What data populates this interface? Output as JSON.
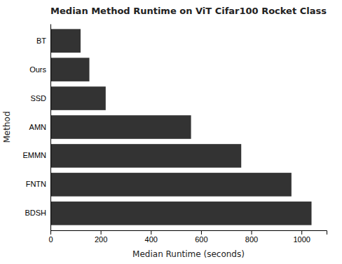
{
  "chart_data": {
    "type": "bar",
    "orientation": "horizontal",
    "title": "Median Method Runtime on ViT Cifar100 Rocket Class",
    "xlabel": "Median Runtime (seconds)",
    "ylabel": "Method",
    "categories": [
      "BDSH",
      "FNTN",
      "EMMN",
      "AMN",
      "SSD",
      "Ours",
      "BT"
    ],
    "values": [
      1040,
      960,
      760,
      560,
      220,
      155,
      120
    ],
    "color": "#333333",
    "xlim": [
      0,
      1100
    ],
    "xticks": [
      0,
      200,
      400,
      600,
      800,
      1000
    ],
    "grid": false
  }
}
